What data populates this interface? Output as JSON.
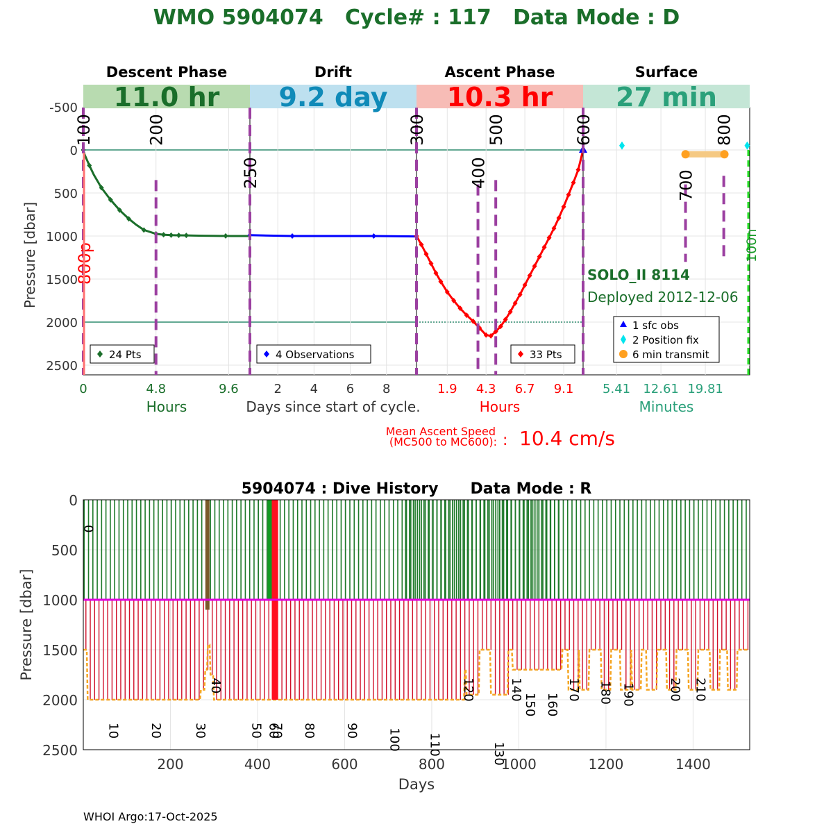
{
  "header": {
    "title": "WMO 5904074   Cycle# : 117   Data Mode : D"
  },
  "footer": {
    "text": "WHOI Argo:17-Oct-2025"
  },
  "colors": {
    "descent": "#1a6e2a",
    "drift": "#0000ff",
    "ascent": "#ff0000",
    "surface_green": "#2aa07a",
    "drift_text": "#0f8ab8",
    "mission_purple": "#9b3fa0",
    "ref_line": "#2e8b6e",
    "transmit": "#ffa020",
    "position": "#00e5ee",
    "magenta": "#e000e0",
    "history_green": "#1f7a2a",
    "history_red": "#d0102a",
    "history_orange": "#f5a623",
    "history_brown": "#7a5a2a"
  },
  "chart_data": [
    {
      "type": "line",
      "id": "cycle_profile",
      "title": "WMO 5904074 Cycle# 117",
      "ylabel": "Pressure [dbar]",
      "ylim": [
        2600,
        -600
      ],
      "yticks": [
        -500,
        0,
        500,
        1000,
        1500,
        2000,
        2500
      ],
      "reference_lines": [
        0,
        2000
      ],
      "phases": [
        {
          "name": "Descent Phase",
          "duration": "11.0 hr",
          "band_color": "#b8dbb0",
          "text_color": "#1a6e2a",
          "xlabel": "Hours",
          "xlabel_color": "#1a6e2a",
          "xticks": [
            "0",
            "4.8",
            "9.6"
          ],
          "xtick_pos": [
            0,
            4.8,
            9.6
          ],
          "xlim": [
            0,
            11.0
          ],
          "legend": "24 Pts",
          "series": {
            "name": "descent",
            "x": [
              0,
              0.02,
              0.1,
              0.4,
              0.7,
              1.2,
              1.8,
              2.4,
              3.0,
              3.5,
              4.0,
              4.8,
              5.3,
              5.8,
              6.3,
              6.8,
              7.3,
              8.0,
              8.6,
              9.0,
              9.4,
              9.8,
              10.4,
              10.9
            ],
            "y": [
              0,
              15,
              60,
              180,
              290,
              440,
              580,
              700,
              800,
              870,
              930,
              975,
              985,
              990,
              992,
              993,
              995,
              997,
              998,
              999,
              999,
              1000,
              1000,
              1000
            ],
            "markers": [
              0,
              3,
              5,
              6,
              7,
              8,
              10,
              11,
              12,
              13,
              14,
              15,
              20
            ]
          }
        },
        {
          "name": "Drift",
          "duration": "9.2 day",
          "band_color": "#bde0ef",
          "text_color": "#0f8ab8",
          "xlabel": "Days since start of cycle.",
          "xlabel_color": "#333333",
          "xticks": [
            "2",
            "4",
            "6",
            "8"
          ],
          "xtick_pos": [
            2,
            4,
            6,
            8
          ],
          "xlim": [
            0.46,
            9.66
          ],
          "legend": "4 Observations",
          "series": {
            "name": "drift",
            "x": [
              0.46,
              2.8,
              7.3,
              9.66
            ],
            "y": [
              990,
              1000,
              1000,
              1005
            ],
            "markers": [
              0,
              1,
              2
            ]
          }
        },
        {
          "name": "Ascent Phase",
          "duration": "10.3 hr",
          "band_color": "#f7bcb6",
          "text_color": "#ff0000",
          "xlabel": "Hours",
          "xlabel_color": "#ff0000",
          "xticks": [
            "1.9",
            "4.3",
            "6.7",
            "9.1"
          ],
          "xtick_pos": [
            1.9,
            4.3,
            6.7,
            9.1
          ],
          "xlim": [
            0,
            10.3
          ],
          "legend": "33 Pts",
          "series": {
            "name": "ascent",
            "x": [
              0,
              0.3,
              0.6,
              0.9,
              1.2,
              1.5,
              1.9,
              2.3,
              2.7,
              3.1,
              3.5,
              3.9,
              4.3,
              4.6,
              4.9,
              5.2,
              5.5,
              5.8,
              6.1,
              6.4,
              6.7,
              7.0,
              7.3,
              7.6,
              7.9,
              8.2,
              8.5,
              8.8,
              9.1,
              9.4,
              9.7,
              10.0,
              10.3
            ],
            "y": [
              1000,
              1100,
              1210,
              1320,
              1430,
              1530,
              1650,
              1750,
              1840,
              1920,
              1990,
              2070,
              2150,
              2160,
              2110,
              2050,
              1970,
              1880,
              1780,
              1680,
              1570,
              1460,
              1350,
              1240,
              1130,
              1020,
              910,
              790,
              660,
              520,
              380,
              230,
              0
            ],
            "markers": "all"
          }
        },
        {
          "name": "Surface",
          "duration": "27 min",
          "band_color": "#c4e6d6",
          "text_color": "#2aa07a",
          "xlabel": "Minutes",
          "xlabel_color": "#2aa07a",
          "xticks": [
            "5.41",
            "12.61",
            "19.81"
          ],
          "xtick_pos": [
            5.41,
            12.61,
            19.81
          ],
          "xlim": [
            0,
            27
          ],
          "position_fixes_min": [
            6.3,
            26.6
          ],
          "transmit_min": [
            16.6,
            22.9
          ]
        }
      ],
      "mission_codes": [
        {
          "label": "100",
          "phase": 0,
          "x": 0,
          "line": "full"
        },
        {
          "label": "200",
          "phase": 0,
          "x": 4.8,
          "line": "partial"
        },
        {
          "label": "250",
          "phase": 1,
          "x": 0.46,
          "line": "full"
        },
        {
          "label": "300",
          "phase": 2,
          "x": 0,
          "line": "full"
        },
        {
          "label": "400",
          "phase": 2,
          "x": 3.8,
          "line": "partial"
        },
        {
          "label": "500",
          "phase": 2,
          "x": 4.9,
          "line": "partial"
        },
        {
          "label": "600",
          "phase": 3,
          "x": 0,
          "line": "full"
        },
        {
          "label": "700",
          "phase": 3,
          "x": 16.6,
          "line": "partial"
        },
        {
          "label": "800",
          "phase": 3,
          "x": 22.8,
          "line": "partial"
        }
      ],
      "side_labels": {
        "left": "800p",
        "right": "100n"
      },
      "float_info": {
        "model": "SOLO_II 8114",
        "deployed": "Deployed 2012-12-06"
      },
      "legend": [
        "1 sfc obs",
        "2 Position fix",
        "6 min transmit"
      ],
      "ascent_speed": {
        "label_line1": "Mean Ascent Speed",
        "label_line2": "(MC500 to MC600):",
        "value": "10.4 cm/s"
      }
    },
    {
      "type": "line",
      "id": "dive_history",
      "title": "5904074 : Dive History      Data Mode : R",
      "xlabel": "Days",
      "ylabel": "Pressure [dbar]",
      "xlim": [
        0,
        1530
      ],
      "ylim": [
        2500,
        0
      ],
      "xticks": [
        200,
        400,
        600,
        800,
        1000,
        1200,
        1400
      ],
      "yticks": [
        0,
        500,
        1000,
        1500,
        2000,
        2500
      ],
      "drift_pressure": 1000,
      "cycle_labels": [
        {
          "label": "0",
          "day": 2,
          "p": 250
        },
        {
          "label": "10",
          "day": 60,
          "p": 2230
        },
        {
          "label": "20",
          "day": 158,
          "p": 2230
        },
        {
          "label": "30",
          "day": 260,
          "p": 2230
        },
        {
          "label": "40",
          "day": 295,
          "p": 1780
        },
        {
          "label": "50",
          "day": 388,
          "p": 2230
        },
        {
          "label": "60",
          "day": 428,
          "p": 2230
        },
        {
          "label": "70",
          "day": 436,
          "p": 2230
        },
        {
          "label": "80",
          "day": 510,
          "p": 2230
        },
        {
          "label": "90",
          "day": 608,
          "p": 2230
        },
        {
          "label": "100",
          "day": 705,
          "p": 2280
        },
        {
          "label": "110",
          "day": 798,
          "p": 2330
        },
        {
          "label": "120",
          "day": 875,
          "p": 1780
        },
        {
          "label": "130",
          "day": 945,
          "p": 2420
        },
        {
          "label": "140",
          "day": 985,
          "p": 1780
        },
        {
          "label": "150",
          "day": 1017,
          "p": 1930
        },
        {
          "label": "160",
          "day": 1068,
          "p": 1930
        },
        {
          "label": "170",
          "day": 1117,
          "p": 1780
        },
        {
          "label": "180",
          "day": 1190,
          "p": 1810
        },
        {
          "label": "190",
          "day": 1242,
          "p": 1830
        },
        {
          "label": "200",
          "day": 1350,
          "p": 1780
        },
        {
          "label": "210",
          "day": 1408,
          "p": 1780
        }
      ],
      "profile_depth_segments": [
        {
          "from": 0,
          "to": 10,
          "p": 1500
        },
        {
          "from": 10,
          "to": 270,
          "p": 2000
        },
        {
          "from": 270,
          "to": 280,
          "p": 1900
        },
        {
          "from": 280,
          "to": 285,
          "p": 1700
        },
        {
          "from": 285,
          "to": 292,
          "p": 1450
        },
        {
          "from": 292,
          "to": 300,
          "p": 1750
        },
        {
          "from": 300,
          "to": 700,
          "p": 2000
        },
        {
          "from": 700,
          "to": 875,
          "p": 2000
        },
        {
          "from": 875,
          "to": 880,
          "p": 1700
        },
        {
          "from": 880,
          "to": 910,
          "p": 1950
        },
        {
          "from": 910,
          "to": 935,
          "p": 1500
        },
        {
          "from": 935,
          "to": 975,
          "p": 1950
        },
        {
          "from": 975,
          "to": 985,
          "p": 1500
        },
        {
          "from": 985,
          "to": 1100,
          "p": 1700
        },
        {
          "from": 1100,
          "to": 1530,
          "p": 1500
        }
      ],
      "dip_days": [
        1125,
        1150,
        1200,
        1245,
        1270,
        1305,
        1350,
        1400,
        1450,
        1490
      ],
      "bold_bars": [
        {
          "day": 285,
          "color": "brown"
        },
        {
          "day": 428,
          "color": "green"
        },
        {
          "day": 440,
          "color": "red"
        }
      ]
    }
  ]
}
